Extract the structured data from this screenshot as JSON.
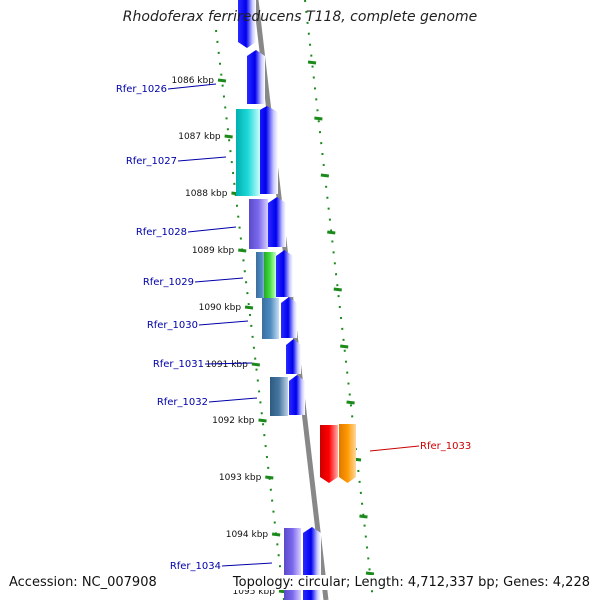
{
  "title": "Rhodoferax ferrireducens T118, complete genome",
  "footer": {
    "accession": "Accession: NC_007908",
    "summary": "Topology: circular; Length: 4,712,337 bp; Genes: 4,228"
  },
  "colors": {
    "forward_gene": "#0000ee",
    "tick": "#1b8a1b",
    "backbone": "#888888",
    "label_blue": "#0000aa",
    "label_red": "#cc0000"
  },
  "ticks": [
    {
      "label": "1086 kbp"
    },
    {
      "label": "1087 kbp"
    },
    {
      "label": "1088 kbp"
    },
    {
      "label": "1089 kbp"
    },
    {
      "label": "1090 kbp"
    },
    {
      "label": "1091 kbp"
    },
    {
      "label": "1092 kbp"
    },
    {
      "label": "1093 kbp"
    },
    {
      "label": "1094 kbp"
    },
    {
      "label": "1095 kbp"
    }
  ],
  "genes": [
    {
      "name": "Rfer_1026"
    },
    {
      "name": "Rfer_1027"
    },
    {
      "name": "Rfer_1028"
    },
    {
      "name": "Rfer_1029"
    },
    {
      "name": "Rfer_1030"
    },
    {
      "name": "Rfer_1031"
    },
    {
      "name": "Rfer_1032"
    },
    {
      "name": "Rfer_1033"
    },
    {
      "name": "Rfer_1034"
    }
  ]
}
